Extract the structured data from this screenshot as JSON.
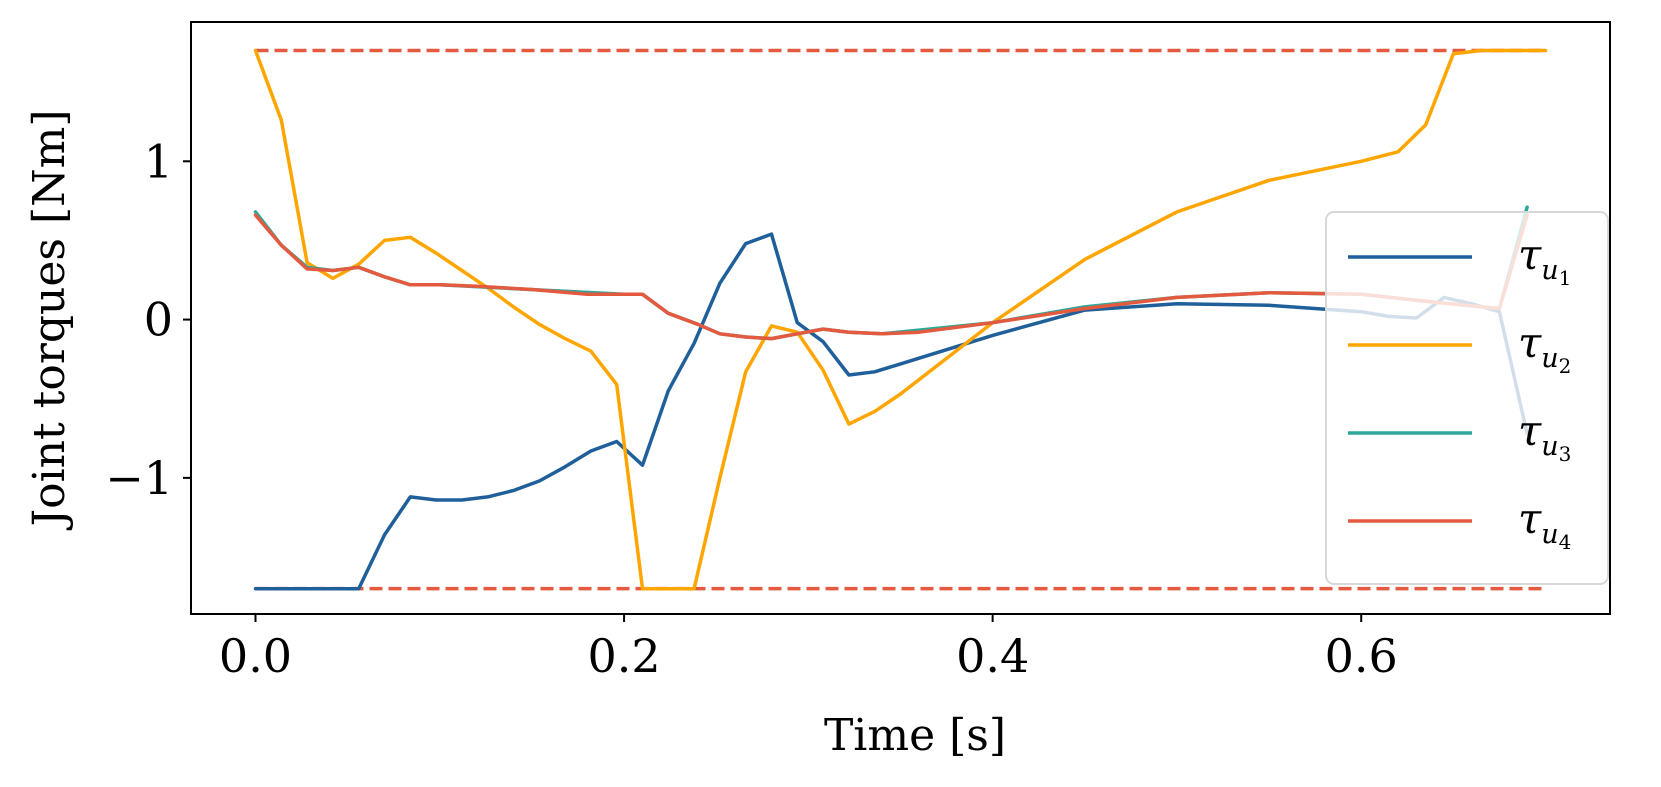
{
  "chart_data": {
    "type": "line",
    "xlabel": "Time [s]",
    "ylabel": "Joint torques [Nm]",
    "xlim": [
      -0.035,
      0.735
    ],
    "ylim": [
      -1.86,
      1.88
    ],
    "xticks": [
      {
        "value": 0.0,
        "label": "0.0"
      },
      {
        "value": 0.2,
        "label": "0.2"
      },
      {
        "value": 0.4,
        "label": "0.4"
      },
      {
        "value": 0.6,
        "label": "0.6"
      }
    ],
    "yticks": [
      {
        "value": -1,
        "label": "−1"
      },
      {
        "value": 0,
        "label": "0"
      },
      {
        "value": 1,
        "label": "1"
      }
    ],
    "grid": false,
    "legend_position": "center-right",
    "torque_limits": {
      "upper": 1.7,
      "lower": -1.7,
      "x_range": [
        0.0,
        0.7
      ],
      "color": "#e35a3f",
      "style": "dashed"
    },
    "series": [
      {
        "name": "τu1",
        "symbol": "τ",
        "sub": "u",
        "subsub": "1",
        "color": "#1f5f9a",
        "x": [
          0.0,
          0.014,
          0.028,
          0.042,
          0.056,
          0.07,
          0.084,
          0.098,
          0.112,
          0.126,
          0.14,
          0.154,
          0.168,
          0.182,
          0.196,
          0.21,
          0.224,
          0.238,
          0.252,
          0.266,
          0.28,
          0.294,
          0.308,
          0.322,
          0.336,
          0.35,
          0.4,
          0.45,
          0.5,
          0.55,
          0.6,
          0.615,
          0.63,
          0.645,
          0.66,
          0.675,
          0.69
        ],
        "y": [
          -1.7,
          -1.7,
          -1.7,
          -1.7,
          -1.7,
          -1.36,
          -1.12,
          -1.14,
          -1.14,
          -1.12,
          -1.08,
          -1.02,
          -0.93,
          -0.83,
          -0.77,
          -0.92,
          -0.45,
          -0.15,
          0.23,
          0.48,
          0.54,
          -0.02,
          -0.14,
          -0.35,
          -0.33,
          -0.28,
          -0.1,
          0.06,
          0.1,
          0.09,
          0.05,
          0.02,
          0.01,
          0.14,
          0.1,
          0.05,
          -0.72
        ]
      },
      {
        "name": "τu2",
        "symbol": "τ",
        "sub": "u",
        "subsub": "2",
        "color": "#ffa500",
        "x": [
          0.0,
          0.014,
          0.028,
          0.042,
          0.056,
          0.07,
          0.084,
          0.098,
          0.112,
          0.126,
          0.14,
          0.154,
          0.168,
          0.182,
          0.196,
          0.21,
          0.224,
          0.238,
          0.252,
          0.266,
          0.28,
          0.294,
          0.308,
          0.322,
          0.336,
          0.35,
          0.4,
          0.45,
          0.5,
          0.55,
          0.6,
          0.62,
          0.635,
          0.65,
          0.665,
          0.68,
          0.7
        ],
        "y": [
          1.7,
          1.26,
          0.36,
          0.26,
          0.35,
          0.5,
          0.52,
          0.42,
          0.31,
          0.2,
          0.08,
          -0.03,
          -0.12,
          -0.2,
          -0.41,
          -1.7,
          -1.7,
          -1.7,
          -1.0,
          -0.33,
          -0.04,
          -0.08,
          -0.32,
          -0.66,
          -0.58,
          -0.47,
          -0.02,
          0.38,
          0.68,
          0.88,
          1.0,
          1.06,
          1.23,
          1.68,
          1.7,
          1.7,
          1.7
        ]
      },
      {
        "name": "τu3",
        "symbol": "τ",
        "sub": "u",
        "subsub": "3",
        "color": "#2ca89a",
        "x": [
          0.0,
          0.014,
          0.028,
          0.042,
          0.056,
          0.07,
          0.084,
          0.1,
          0.2,
          0.21,
          0.224,
          0.24,
          0.252,
          0.266,
          0.28,
          0.294,
          0.308,
          0.322,
          0.34,
          0.4,
          0.45,
          0.5,
          0.55,
          0.6,
          0.64,
          0.675,
          0.69
        ],
        "y": [
          0.68,
          0.47,
          0.33,
          0.31,
          0.33,
          0.27,
          0.22,
          0.22,
          0.16,
          0.16,
          0.04,
          -0.03,
          -0.09,
          -0.11,
          -0.12,
          -0.09,
          -0.06,
          -0.08,
          -0.09,
          -0.02,
          0.08,
          0.14,
          0.17,
          0.16,
          0.11,
          0.07,
          0.71
        ]
      },
      {
        "name": "τu4",
        "symbol": "τ",
        "sub": "u",
        "subsub": "4",
        "color": "#e35a3f",
        "x": [
          0.0,
          0.014,
          0.028,
          0.042,
          0.056,
          0.07,
          0.084,
          0.1,
          0.12,
          0.15,
          0.18,
          0.2,
          0.21,
          0.224,
          0.24,
          0.252,
          0.266,
          0.28,
          0.294,
          0.308,
          0.322,
          0.34,
          0.36,
          0.4,
          0.45,
          0.5,
          0.55,
          0.6,
          0.64,
          0.675,
          0.69
        ],
        "y": [
          0.66,
          0.47,
          0.32,
          0.31,
          0.33,
          0.27,
          0.22,
          0.22,
          0.21,
          0.19,
          0.16,
          0.16,
          0.16,
          0.04,
          -0.03,
          -0.09,
          -0.11,
          -0.12,
          -0.09,
          -0.06,
          -0.08,
          -0.09,
          -0.08,
          -0.02,
          0.07,
          0.14,
          0.17,
          0.16,
          0.11,
          0.07,
          0.66
        ]
      }
    ]
  }
}
